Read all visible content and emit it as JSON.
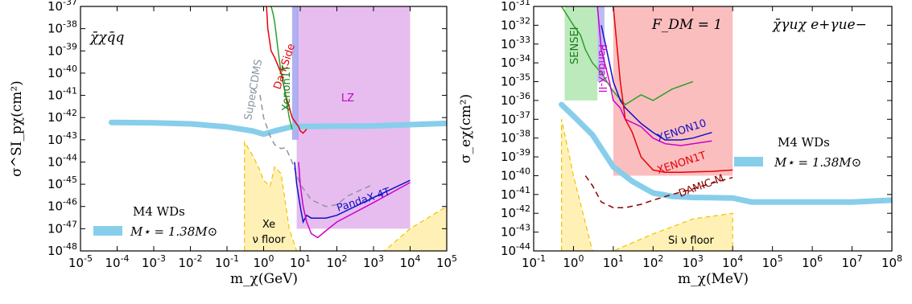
{
  "chart_data": [
    {
      "type": "line",
      "panel": "left",
      "xlabel": "m_χ(GeV)",
      "ylabel": "σ^SI_pχ(cm²)",
      "xscale": "log",
      "yscale": "log",
      "xlim": [
        1e-05,
        100000.0
      ],
      "ylim": [
        1e-48,
        1e-37
      ],
      "x_ticks": [
        "10-5",
        "10-4",
        "10-3",
        "10-2",
        "10-1",
        "100",
        "101",
        "102",
        "103",
        "104",
        "105"
      ],
      "y_ticks": [
        "10-48",
        "10-47",
        "10-46",
        "10-45",
        "10-44",
        "10-43",
        "10-42",
        "10-41",
        "10-40",
        "10-39",
        "10-38",
        "10-37"
      ],
      "operator_label": "χ̄χq̄q",
      "legend": {
        "line1": "M4 WDs",
        "line2": "M⋆ = 1.38M⊙",
        "placement": "lower-left"
      },
      "labels": {
        "darkside": "DarkSide",
        "xenon1t": "Xenon1T",
        "lz": "LZ",
        "supercdms": "SuperCDMS",
        "pandax4t": "PandaX-4T",
        "nu_floor_1": "Xe",
        "nu_floor_2": "ν floor"
      },
      "series": [
        {
          "key": "wd",
          "name": "M4 WDs",
          "color": "#87CEEB",
          "x": [
            7e-05,
            0.001,
            0.01,
            0.1,
            0.5,
            1,
            2,
            5,
            10,
            100,
            1000,
            10000,
            100000
          ],
          "y": [
            6e-43,
            5.8e-43,
            5.2e-43,
            3.8e-43,
            2.5e-43,
            1.8e-43,
            2.5e-43,
            3.6e-43,
            4e-43,
            4.1e-43,
            4.2e-43,
            4.8e-43,
            5.5e-43
          ]
        },
        {
          "key": "darkside",
          "name": "DarkSide",
          "color": "#e8000b",
          "x": [
            1.2,
            1.3,
            1.6,
            2,
            3,
            4,
            5,
            6,
            7,
            8,
            9,
            10,
            12,
            15
          ],
          "y": [
            1e-37,
            1e-38,
            1e-39,
            5e-40,
            1e-40,
            1e-41,
            3e-42,
            1e-42,
            7e-43,
            5e-43,
            4e-43,
            2.5e-43,
            2e-43,
            3e-43
          ]
        },
        {
          "key": "xenon1t",
          "name": "Xenon1T",
          "color": "#2ca02c",
          "x": [
            1.6,
            1.8,
            2,
            2.5,
            3,
            4,
            5,
            6
          ],
          "y": [
            1e-37,
            5e-38,
            2e-38,
            1e-39,
            1e-40,
            1e-41,
            1e-42,
            3e-43
          ]
        },
        {
          "key": "supercdms",
          "name": "SuperCDMS",
          "color": "#8b95a3",
          "x": [
            0.5,
            0.8,
            1,
            1.5,
            2,
            3,
            4,
            6,
            10,
            20,
            50,
            100,
            200,
            1000
          ],
          "y": [
            2e-41,
            1e-41,
            1e-42,
            1.5e-43,
            6e-44,
            4e-44,
            4.5e-44,
            1e-44,
            1e-45,
            2e-46,
            1e-46,
            1.2e-46,
            3e-46,
            1e-45
          ]
        },
        {
          "key": "pandax4t",
          "name": "PandaX-4T",
          "color": "#1010c8",
          "x": [
            7,
            8,
            10,
            12,
            15,
            20,
            30,
            50,
            100,
            1000,
            10000
          ],
          "y": [
            1e-44,
            1e-45,
            1e-46,
            2e-47,
            4e-47,
            3e-47,
            3e-47,
            3e-47,
            4e-47,
            2.5e-46,
            1.5e-45
          ]
        },
        {
          "key": "lz",
          "name": "LZ",
          "color": "#cc00cc",
          "x": [
            9,
            10,
            12,
            15,
            20,
            30,
            50,
            100,
            1000,
            10000
          ],
          "y": [
            1e-44,
            1e-45,
            1e-46,
            2e-47,
            6e-48,
            4e-48,
            8e-48,
            2e-47,
            1.5e-46,
            1.2e-45
          ]
        },
        {
          "key": "nufloor",
          "name": "Xe ν floor",
          "color": "#fff1b6",
          "x": [
            0.3,
            0.5,
            0.8,
            1,
            1.5,
            2,
            3,
            5,
            8,
            10,
            2000,
            10000,
            100000
          ],
          "y": [
            8e-44,
            2e-44,
            4e-45,
            1.5e-45,
            8e-46,
            6e-45,
            3e-45,
            1e-47,
            1e-48,
            1e-48,
            1e-48,
            1e-47,
            1e-46
          ]
        }
      ],
      "regions": [
        {
          "key": "lz",
          "color": "#e3b6ec",
          "x": [
            8,
            10000
          ],
          "y": [
            1e-47,
            1e-37
          ]
        },
        {
          "key": "xenon1t_band",
          "color": "#a9a9ef",
          "x": [
            6,
            9
          ],
          "y": [
            1e-43,
            1e-37
          ]
        }
      ]
    },
    {
      "type": "line",
      "panel": "right",
      "xlabel": "m_χ(MeV)",
      "ylabel": "σ_eχ(cm²)",
      "xscale": "log",
      "yscale": "log",
      "xlim": [
        0.1,
        100000000.0
      ],
      "ylim": [
        1e-44,
        1e-31
      ],
      "x_ticks": [
        "10-1",
        "100",
        "101",
        "102",
        "103",
        "104",
        "105",
        "106",
        "107",
        "108"
      ],
      "y_ticks": [
        "10-44",
        "10-43",
        "10-42",
        "10-41",
        "10-40",
        "10-39",
        "10-38",
        "10-37",
        "10-36",
        "10-35",
        "10-34",
        "10-33",
        "10-32",
        "10-31"
      ],
      "operator_label": "χ̄γuχ e+γue−",
      "fdm_label": "F_DM = 1",
      "legend": {
        "line1": "M4 WDs",
        "line2": "M⋆ = 1.38M⊙",
        "placement": "center-right"
      },
      "labels": {
        "sensei": "SENSEI",
        "pandax2": "PandaX-II",
        "xenon10": "XENON10",
        "xenon1t": "XENON1T",
        "damic": "DAMIC-M",
        "nu_floor": "Si ν floor"
      },
      "series": [
        {
          "key": "wd",
          "name": "M4 WDs",
          "color": "#87CEEB",
          "x": [
            0.5,
            1,
            3,
            10,
            30,
            100,
            300,
            1000,
            10000,
            30000,
            100000,
            1000000,
            10000000,
            100000000
          ],
          "y": [
            6e-37,
            1.5e-37,
            1.5e-38,
            3e-40,
            5e-41,
            1.2e-41,
            8e-42,
            7e-42,
            6.5e-42,
            4e-42,
            4e-42,
            4e-42,
            4e-42,
            5e-42
          ]
        },
        {
          "key": "sensei",
          "name": "SENSEI",
          "color": "#2ca02c",
          "x": [
            0.5,
            1,
            1.5,
            2,
            3,
            5,
            10,
            20,
            50,
            100,
            300,
            1000
          ],
          "y": [
            1e-31,
            1e-32,
            3e-33,
            5e-34,
            1e-34,
            3e-35,
            3e-36,
            6e-37,
            2e-36,
            1e-36,
            4e-36,
            1e-35
          ]
        },
        {
          "key": "pandax2",
          "name": "PandaX-II",
          "color": "#cc00cc",
          "x": [
            4,
            5,
            8,
            10,
            15,
            20,
            50,
            100,
            200,
            500,
            1000,
            3000
          ],
          "y": [
            1e-31,
            5e-34,
            1e-35,
            1e-36,
            4e-37,
            1e-37,
            4e-38,
            1e-38,
            5e-39,
            4e-39,
            5e-39,
            7e-39
          ]
        },
        {
          "key": "xenon10",
          "name": "XENON10",
          "color": "#1010c8",
          "x": [
            5,
            8,
            10,
            15,
            20,
            50,
            100,
            200,
            500,
            1000,
            3000
          ],
          "y": [
            1e-32,
            1e-34,
            1e-35,
            1e-36,
            4e-37,
            6e-38,
            2e-38,
            8e-39,
            8e-39,
            1e-38,
            2e-38
          ]
        },
        {
          "key": "xenon1t",
          "name": "XENON1T",
          "color": "#e8000b",
          "x": [
            10,
            15,
            20,
            30,
            50,
            100,
            200,
            500,
            1000,
            3000,
            10000
          ],
          "y": [
            1e-31,
            1e-35,
            1e-37,
            2e-38,
            1e-39,
            2e-40,
            1.5e-40,
            1.5e-40,
            1.6e-40,
            1.7e-40,
            2e-40
          ]
        },
        {
          "key": "damic",
          "name": "DAMIC-M",
          "color": "#8b0000",
          "x": [
            2,
            3,
            5,
            10,
            20,
            50,
            100,
            300,
            1000,
            3000,
            10000
          ],
          "y": [
            1e-40,
            3e-41,
            4e-42,
            2e-42,
            2e-42,
            3e-42,
            5e-42,
            1e-41,
            2e-41,
            4e-41,
            8e-41
          ]
        },
        {
          "key": "nufloor",
          "name": "Si ν floor",
          "color": "#fff1b6",
          "x": [
            0.5,
            1,
            2,
            3,
            5,
            10,
            100,
            1000,
            10000
          ],
          "y": [
            1e-37,
            1e-40,
            3e-43,
            1e-44,
            1e-44,
            1e-44,
            8e-44,
            5e-43,
            1e-42
          ]
        }
      ],
      "regions": [
        {
          "key": "xenon1t",
          "color": "#fbb7b7",
          "x": [
            10,
            10000
          ],
          "y": [
            1e-40,
            1e-31
          ]
        },
        {
          "key": "pandax2_band",
          "color": "#b5b5ef",
          "x": [
            4,
            6
          ],
          "y": [
            1e-35,
            1e-31
          ]
        },
        {
          "key": "sensei",
          "color": "#b5e8b5",
          "x": [
            0.6,
            4
          ],
          "y": [
            1e-36,
            1e-31
          ]
        }
      ]
    }
  ]
}
